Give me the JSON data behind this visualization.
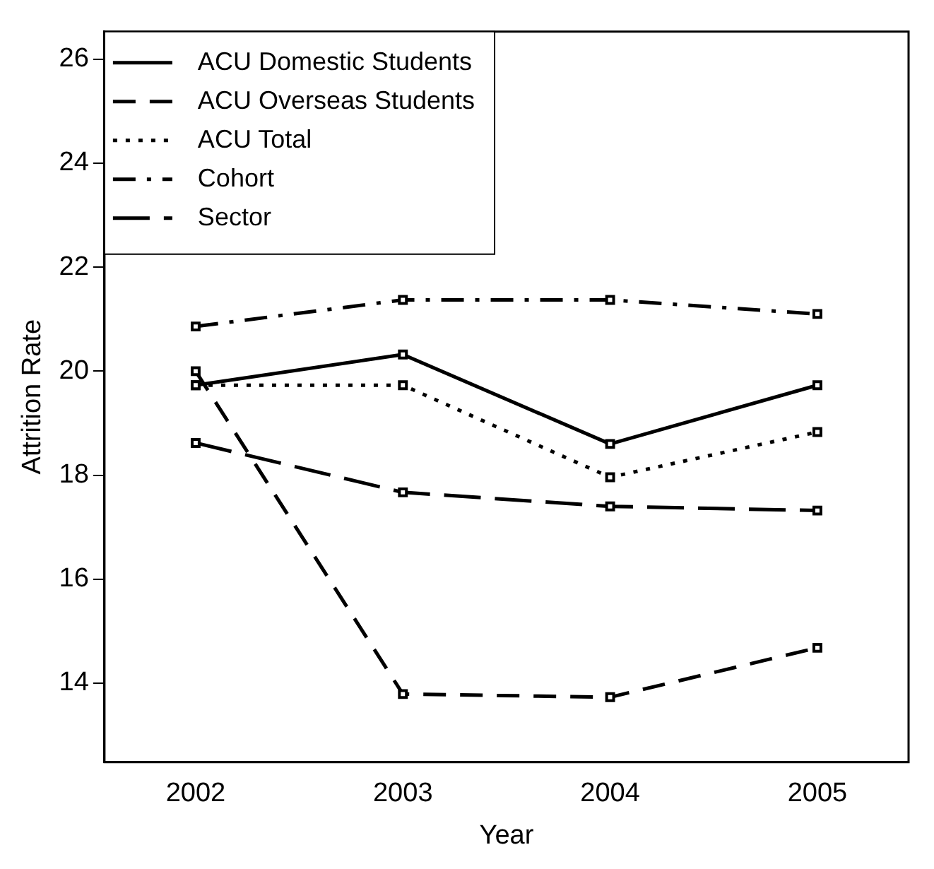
{
  "chart_data": {
    "type": "line",
    "xlabel": "Year",
    "ylabel": "Attrition Rate",
    "x": [
      2002,
      2003,
      2004,
      2005
    ],
    "series": [
      {
        "name": "ACU Domestic Students",
        "color": "#000000",
        "line_style": "solid",
        "values": [
          19.73,
          20.32,
          18.6,
          19.73
        ]
      },
      {
        "name": "ACU Overseas Students",
        "color": "#000000",
        "line_style": "dashed",
        "values": [
          20.0,
          13.79,
          13.73,
          14.68
        ]
      },
      {
        "name": "ACU Total",
        "color": "#000000",
        "line_style": "dotted",
        "values": [
          19.73,
          19.73,
          17.96,
          18.83
        ]
      },
      {
        "name": "Cohort",
        "color": "#000000",
        "line_style": "dashed",
        "values": [
          20.86,
          21.37,
          21.37,
          21.1
        ]
      },
      {
        "name": "Sector",
        "color": "#000000",
        "line_style": "dashed",
        "values": [
          18.62,
          17.67,
          17.4,
          17.32
        ]
      }
    ],
    "xlim": [
      2001.56,
      2005.44
    ],
    "xticks": [
      2002,
      2003,
      2004,
      2005
    ],
    "ylim": [
      12.48,
      26.53
    ],
    "yticks": [
      14,
      16,
      18,
      20,
      22,
      24,
      26
    ],
    "marker": "square",
    "legend": "top left",
    "grid": false
  }
}
